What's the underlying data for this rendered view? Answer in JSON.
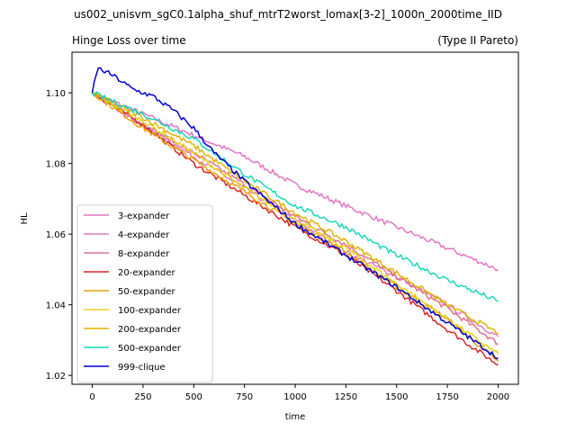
{
  "figure_title": "us002_unisvm_sgC0.1alpha_shuf_mtrT2worst_lomax[3-2]_1000n_2000time_IID",
  "chart_data": {
    "type": "line",
    "title_left": "Hinge Loss over time",
    "title_right": "(Type II Pareto)",
    "xlabel": "time",
    "ylabel": "HL",
    "xlim": [
      -100,
      2100
    ],
    "ylim": [
      1.0175,
      1.1115
    ],
    "xticks": [
      0,
      250,
      500,
      750,
      1000,
      1250,
      1500,
      1750,
      2000
    ],
    "yticks": [
      1.02,
      1.04,
      1.06,
      1.08,
      1.1
    ],
    "ytick_labels": [
      "1.02",
      "1.04",
      "1.06",
      "1.08",
      "1.10"
    ],
    "grid": false,
    "legend_position": "lower-left",
    "series": [
      {
        "name": "3-expander",
        "color": "#e377c2",
        "x": [
          0,
          250,
          500,
          750,
          1000,
          1250,
          1500,
          1750,
          2000
        ],
        "y": [
          1.1,
          1.094,
          1.088,
          1.082,
          1.074,
          1.068,
          1.062,
          1.056,
          1.05
        ]
      },
      {
        "name": "4-expander",
        "color": "#de7fbf",
        "x": [
          0,
          250,
          500,
          750,
          1000,
          1250,
          1500,
          1750,
          2000
        ],
        "y": [
          1.1,
          1.091,
          1.082,
          1.073,
          1.064,
          1.055,
          1.048,
          1.04,
          1.031
        ]
      },
      {
        "name": "8-expander",
        "color": "#e0708f",
        "x": [
          0,
          250,
          500,
          750,
          1000,
          1250,
          1500,
          1750,
          2000
        ],
        "y": [
          1.1,
          1.091,
          1.083,
          1.074,
          1.065,
          1.057,
          1.048,
          1.039,
          1.029
        ]
      },
      {
        "name": "20-expander",
        "color": "#d62728",
        "x": [
          0,
          250,
          500,
          750,
          1000,
          1250,
          1500,
          1750,
          2000
        ],
        "y": [
          1.1,
          1.091,
          1.08,
          1.071,
          1.062,
          1.054,
          1.044,
          1.033,
          1.023
        ]
      },
      {
        "name": "50-expander",
        "color": "#e8a00c",
        "x": [
          0,
          250,
          500,
          750,
          1000,
          1250,
          1500,
          1750,
          2000
        ],
        "y": [
          1.1,
          1.09,
          1.081,
          1.072,
          1.063,
          1.055,
          1.045,
          1.036,
          1.024
        ]
      },
      {
        "name": "100-expander",
        "color": "#e6d21a",
        "x": [
          0,
          250,
          500,
          750,
          1000,
          1250,
          1500,
          1750,
          2000
        ],
        "y": [
          1.1,
          1.092,
          1.083,
          1.073,
          1.064,
          1.056,
          1.046,
          1.036,
          1.026
        ]
      },
      {
        "name": "200-expander",
        "color": "#e0b400",
        "x": [
          0,
          250,
          500,
          750,
          1000,
          1250,
          1500,
          1750,
          2000
        ],
        "y": [
          1.1,
          1.093,
          1.085,
          1.075,
          1.066,
          1.058,
          1.049,
          1.04,
          1.032
        ]
      },
      {
        "name": "500-expander",
        "color": "#17d8b8",
        "x": [
          0,
          250,
          500,
          750,
          1000,
          1250,
          1500,
          1750,
          2000
        ],
        "y": [
          1.1,
          1.094,
          1.087,
          1.077,
          1.068,
          1.062,
          1.054,
          1.047,
          1.041
        ]
      },
      {
        "name": "999-clique",
        "color": "#0000d6",
        "x": [
          0,
          25,
          100,
          200,
          300,
          400,
          500,
          600,
          750,
          1000,
          1250,
          1500,
          1750,
          2000
        ],
        "y": [
          1.1,
          1.107,
          1.105,
          1.101,
          1.099,
          1.095,
          1.09,
          1.083,
          1.075,
          1.063,
          1.054,
          1.045,
          1.035,
          1.025
        ]
      }
    ]
  }
}
